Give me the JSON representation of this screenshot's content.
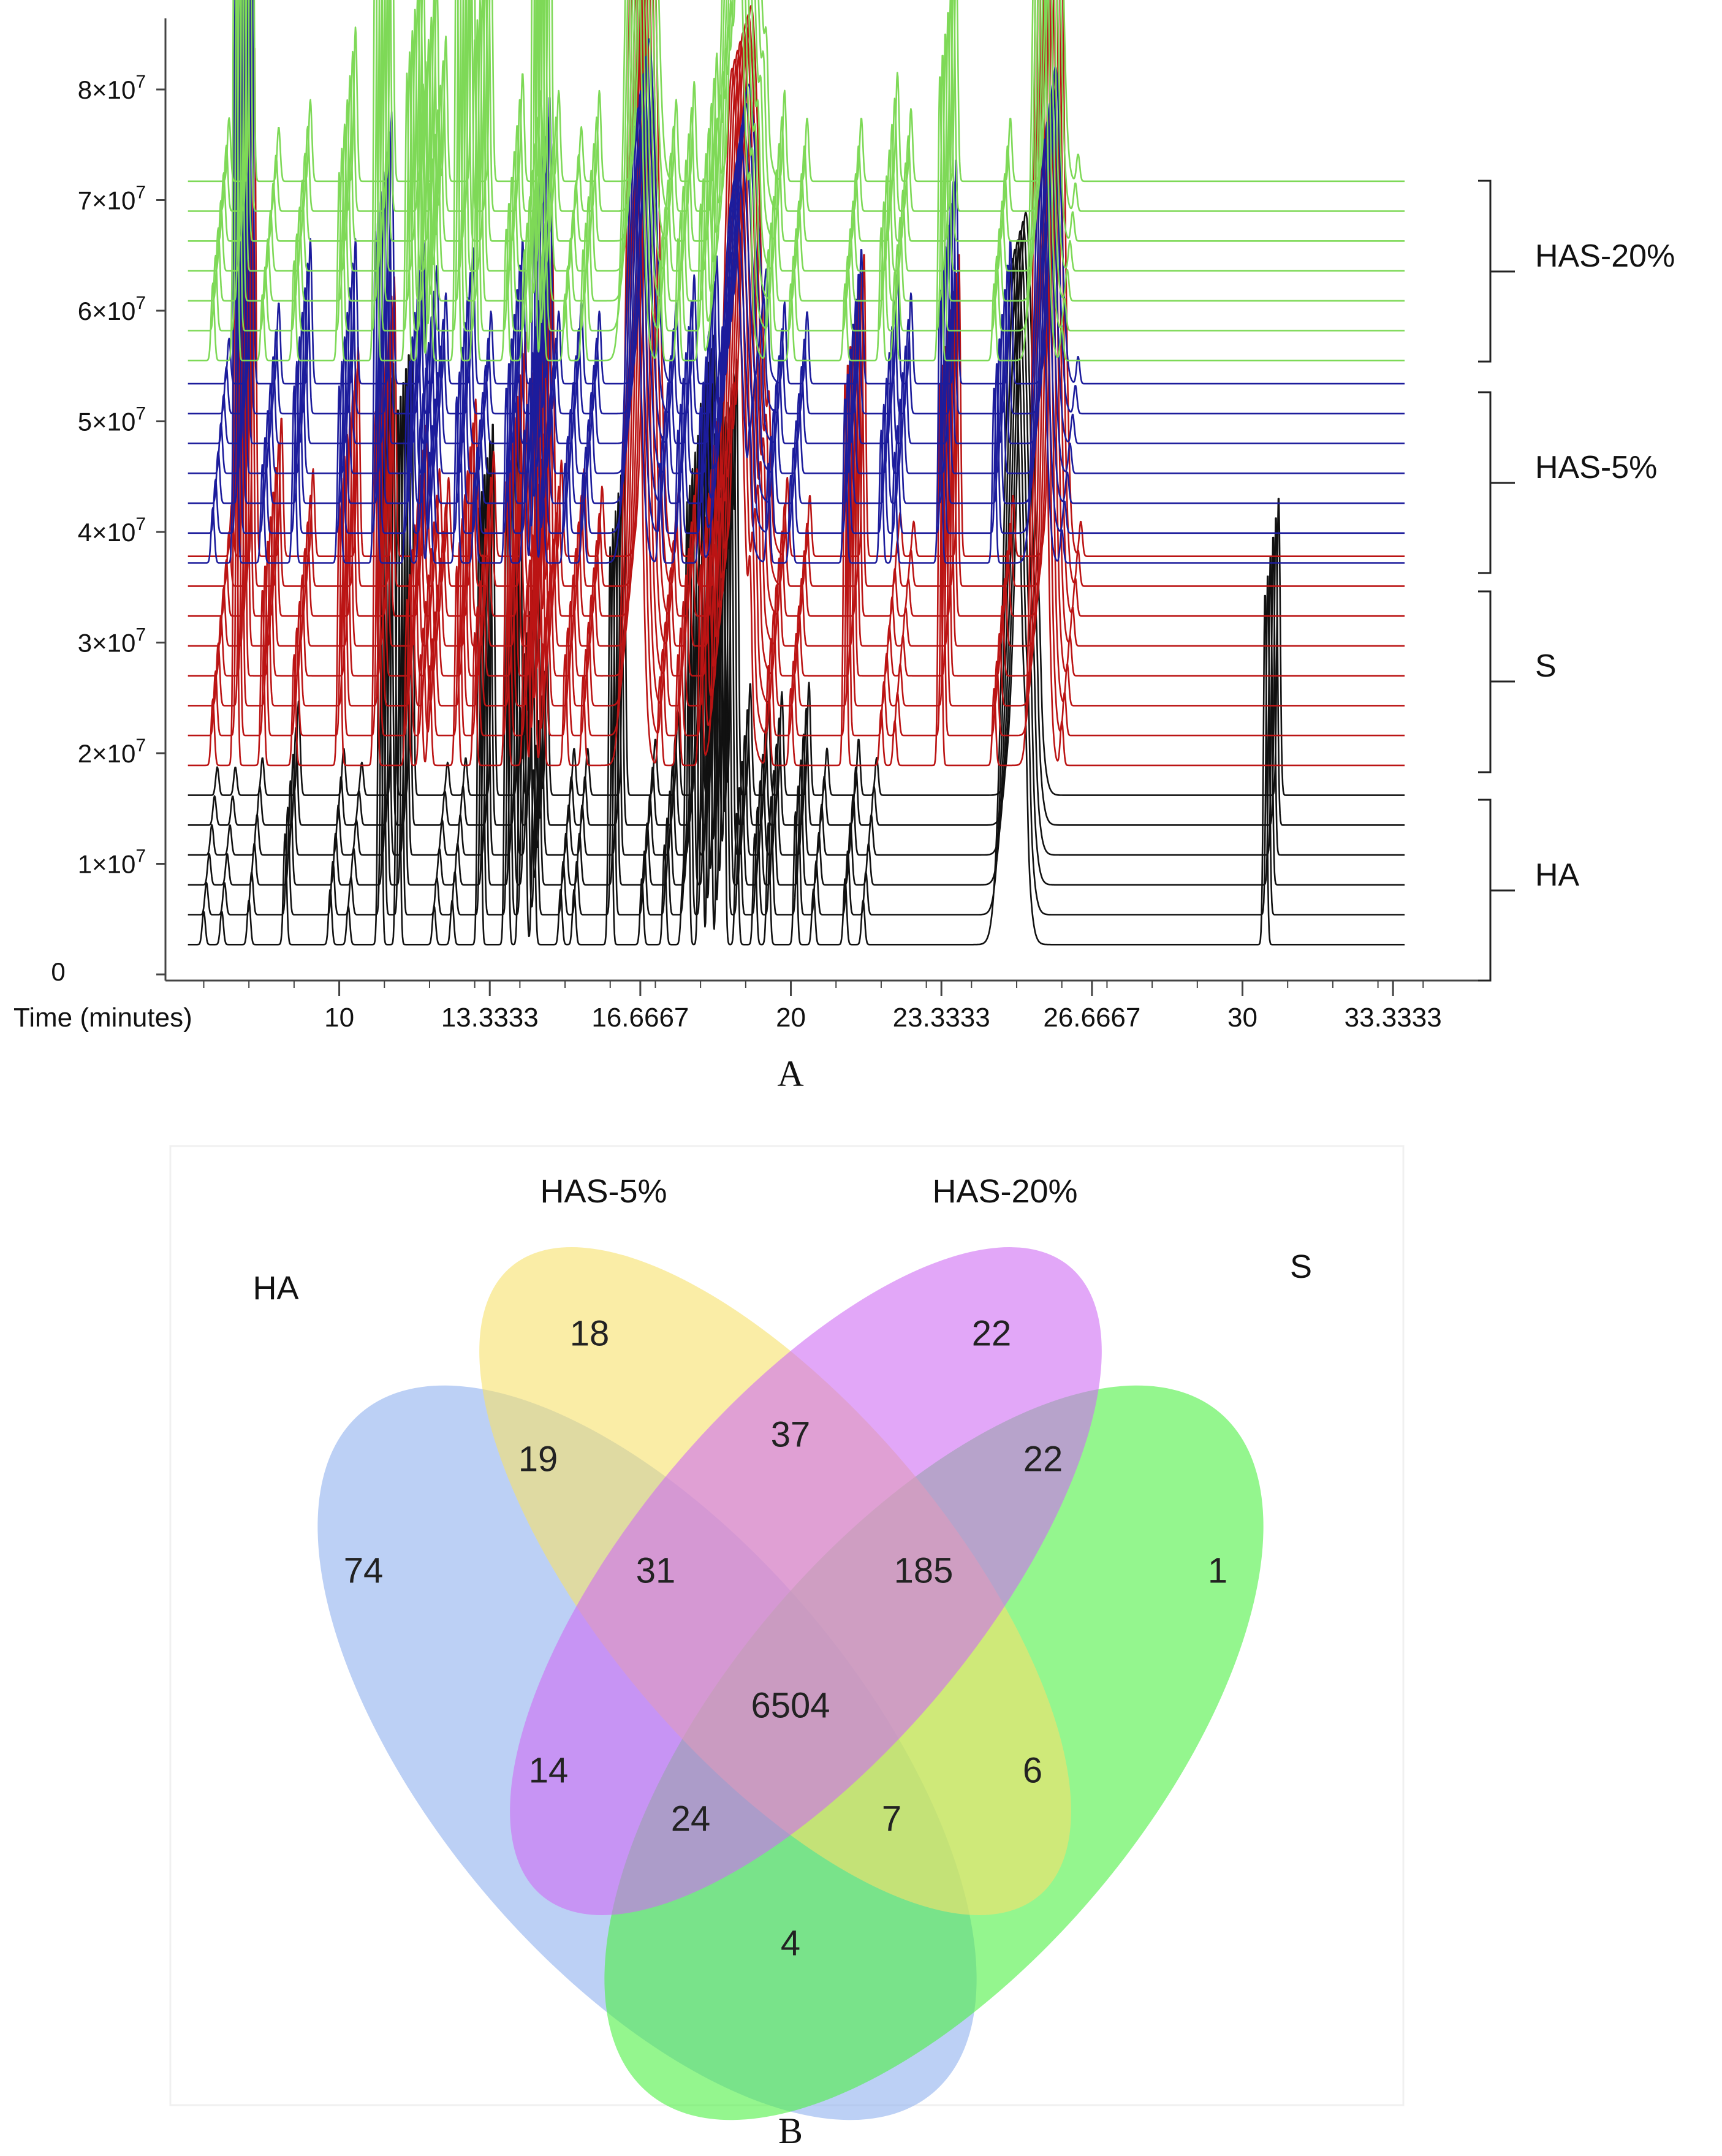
{
  "figure": {
    "panels": [
      "A",
      "B"
    ]
  },
  "chart_data": [
    {
      "panel": "A",
      "type": "line",
      "title": "",
      "xlabel": "Time (minutes)",
      "ylabel": "",
      "xlim": [
        6.6,
        35
      ],
      "ylim": [
        0,
        88000000
      ],
      "x_ticks": [
        10,
        13.3333,
        16.6667,
        20,
        23.3333,
        26.6667,
        30,
        33.3333
      ],
      "x_tick_labels": [
        "10",
        "13.3333",
        "16.6667",
        "20",
        "23.3333",
        "26.6667",
        "30",
        "33.3333"
      ],
      "y_ticks": [
        0,
        10000000,
        20000000,
        30000000,
        40000000,
        50000000,
        60000000,
        70000000,
        80000000
      ],
      "y_tick_mantissas": [
        "",
        "1",
        "2",
        "3",
        "4",
        "5",
        "6",
        "7",
        "8"
      ],
      "y_tick_times": "×10",
      "y_tick_exponent": "7",
      "y_tick_zero": "0",
      "stack_offset": 2700000,
      "series": [
        {
          "name": "HA",
          "color": "#111111",
          "replicates": 6,
          "baseline_start": 2700000,
          "peaks": [
            [
              7.0,
              0.3
            ],
            [
              7.4,
              0.3
            ],
            [
              8.0,
              0.4
            ],
            [
              8.8,
              1.0
            ],
            [
              9.8,
              0.5
            ],
            [
              10.2,
              0.35
            ],
            [
              10.9,
              4.6
            ],
            [
              11.3,
              4.9
            ],
            [
              12.1,
              0.35
            ],
            [
              12.5,
              0.4
            ],
            [
              13.1,
              4.0
            ],
            [
              13.7,
              4.2
            ],
            [
              14.0,
              2.1
            ],
            [
              14.1,
              2.6
            ],
            [
              14.3,
              1.6
            ],
            [
              14.9,
              0.5
            ],
            [
              15.2,
              0.5
            ],
            [
              16.0,
              3.6
            ],
            [
              16.7,
              0.6
            ],
            [
              17.2,
              0.9
            ],
            [
              17.6,
              0.5
            ],
            [
              17.7,
              4.0
            ],
            [
              18.0,
              4.9
            ],
            [
              18.2,
              4.4
            ],
            [
              18.4,
              3.9
            ],
            [
              18.5,
              4.6
            ],
            [
              18.8,
              1.2
            ],
            [
              19.2,
              1.0
            ],
            [
              19.5,
              1.1
            ],
            [
              20.1,
              1.2
            ],
            [
              20.5,
              0.5
            ],
            [
              21.2,
              0.6
            ],
            [
              21.6,
              0.4
            ],
            [
              24.9,
              6.2,
              0.18
            ],
            [
              25.2,
              0.5
            ],
            [
              30.5,
              3.2
            ]
          ]
        },
        {
          "name": "S",
          "color": "#bb1414",
          "replicates": 8,
          "baseline_start": 18900000,
          "peaks": [
            [
              7.2,
              0.6
            ],
            [
              7.7,
              5.9
            ],
            [
              8.3,
              1.6
            ],
            [
              9.0,
              1.0
            ],
            [
              10.0,
              2.4
            ],
            [
              10.8,
              3.2
            ],
            [
              11.5,
              1.5
            ],
            [
              11.8,
              1.0
            ],
            [
              12.0,
              0.9
            ],
            [
              12.6,
              1.8
            ],
            [
              13.0,
              1.2
            ],
            [
              13.7,
              2.6
            ],
            [
              14.1,
              1.4
            ],
            [
              14.3,
              3.6
            ],
            [
              14.5,
              1.1
            ],
            [
              15.0,
              1.0
            ],
            [
              15.4,
              0.8
            ],
            [
              16.5,
              8.0,
              0.14
            ],
            [
              17.1,
              0.8
            ],
            [
              17.5,
              1.0
            ],
            [
              18.0,
              1.8
            ],
            [
              18.3,
              1.1
            ],
            [
              18.7,
              6.3,
              0.2
            ],
            [
              19.1,
              1.0
            ],
            [
              19.5,
              0.9
            ],
            [
              20.0,
              0.7
            ],
            [
              21.2,
              3.5
            ],
            [
              22.0,
              0.5
            ],
            [
              22.3,
              0.4
            ],
            [
              23.3,
              3.5
            ],
            [
              24.5,
              0.7
            ],
            [
              25.5,
              9.2,
              0.12
            ],
            [
              26.0,
              0.4
            ]
          ]
        },
        {
          "name": "HAS-5%",
          "color": "#1c1c9c",
          "replicates": 7,
          "baseline_start": 37200000,
          "peaks": [
            [
              7.2,
              0.5
            ],
            [
              7.7,
              5.2
            ],
            [
              8.3,
              0.9
            ],
            [
              9.0,
              1.6
            ],
            [
              10.0,
              1.6
            ],
            [
              10.8,
              3.0
            ],
            [
              11.5,
              1.6
            ],
            [
              11.8,
              1.3
            ],
            [
              12.0,
              1.0
            ],
            [
              12.6,
              1.5
            ],
            [
              13.0,
              0.8
            ],
            [
              13.7,
              1.6
            ],
            [
              14.1,
              1.2
            ],
            [
              14.3,
              3.2
            ],
            [
              14.5,
              0.8
            ],
            [
              15.0,
              0.9
            ],
            [
              15.4,
              0.8
            ],
            [
              16.5,
              3.8,
              0.14
            ],
            [
              17.1,
              0.9
            ],
            [
              17.5,
              1.2
            ],
            [
              18.0,
              1.4
            ],
            [
              18.3,
              1.0
            ],
            [
              18.7,
              3.3,
              0.2
            ],
            [
              19.1,
              0.8
            ],
            [
              19.5,
              0.9
            ],
            [
              20.0,
              0.8
            ],
            [
              21.2,
              1.5
            ],
            [
              22.0,
              1.2
            ],
            [
              22.3,
              1.0
            ],
            [
              23.3,
              2.5
            ],
            [
              24.5,
              1.6
            ],
            [
              25.5,
              3.5,
              0.12
            ],
            [
              26.0,
              0.3
            ]
          ]
        },
        {
          "name": "HAS-20%",
          "color": "#7ed957",
          "replicates": 7,
          "baseline_start": 55500000,
          "peaks": [
            [
              7.2,
              0.7
            ],
            [
              7.7,
              7.8
            ],
            [
              8.3,
              0.6
            ],
            [
              9.0,
              0.9
            ],
            [
              10.0,
              1.7
            ],
            [
              10.8,
              4.5
            ],
            [
              11.5,
              2.6
            ],
            [
              11.8,
              2.3
            ],
            [
              12.0,
              1.6
            ],
            [
              12.6,
              4.5
            ],
            [
              13.0,
              2.9
            ],
            [
              13.7,
              1.2
            ],
            [
              14.1,
              1.0
            ],
            [
              14.3,
              6.0
            ],
            [
              14.5,
              1.0
            ],
            [
              15.0,
              0.6
            ],
            [
              15.4,
              1.0
            ],
            [
              16.5,
              6.8,
              0.14
            ],
            [
              17.1,
              0.9
            ],
            [
              17.5,
              1.1
            ],
            [
              18.0,
              1.4
            ],
            [
              18.3,
              1.1
            ],
            [
              18.7,
              6.2,
              0.2
            ],
            [
              19.1,
              0.8
            ],
            [
              19.5,
              1.0
            ],
            [
              20.0,
              0.7
            ],
            [
              21.2,
              0.7
            ],
            [
              22.0,
              1.2
            ],
            [
              22.3,
              0.8
            ],
            [
              23.3,
              2.6
            ],
            [
              24.5,
              0.7
            ],
            [
              25.5,
              6.6,
              0.12
            ],
            [
              26.0,
              0.3
            ]
          ]
        }
      ],
      "brackets": [
        "HAS-20%",
        "HAS-5%",
        "S",
        "HA"
      ]
    },
    {
      "panel": "B",
      "type": "venn",
      "sets": [
        "HA",
        "HAS-5%",
        "HAS-20%",
        "S"
      ],
      "colors": {
        "HA": "#8fb0ef",
        "HAS-5%": "#f6e16a",
        "HAS-20%": "#cf6cf4",
        "S": "#4cf043"
      },
      "regions": [
        {
          "sets": [
            "HA"
          ],
          "value": 74
        },
        {
          "sets": [
            "HAS-5%"
          ],
          "value": 18
        },
        {
          "sets": [
            "HAS-20%"
          ],
          "value": 22
        },
        {
          "sets": [
            "S"
          ],
          "value": 1
        },
        {
          "sets": [
            "HA",
            "HAS-5%"
          ],
          "value": 19
        },
        {
          "sets": [
            "HAS-5%",
            "HAS-20%"
          ],
          "value": 37
        },
        {
          "sets": [
            "HAS-20%",
            "S"
          ],
          "value": 22
        },
        {
          "sets": [
            "HA",
            "HAS-5%",
            "HAS-20%"
          ],
          "value": 31
        },
        {
          "sets": [
            "HAS-5%",
            "HAS-20%",
            "S"
          ],
          "value": 185
        },
        {
          "sets": [
            "HA",
            "HAS-5%",
            "HAS-20%",
            "S"
          ],
          "value": 6504
        },
        {
          "sets": [
            "HA",
            "HAS-20%"
          ],
          "value": 14
        },
        {
          "sets": [
            "HA",
            "HAS-20%",
            "S"
          ],
          "value": 24
        },
        {
          "sets": [
            "HA",
            "HAS-5%",
            "S"
          ],
          "value": 7
        },
        {
          "sets": [
            "HAS-5%",
            "S"
          ],
          "value": 6
        },
        {
          "sets": [
            "HA",
            "S"
          ],
          "value": 4
        }
      ]
    }
  ]
}
